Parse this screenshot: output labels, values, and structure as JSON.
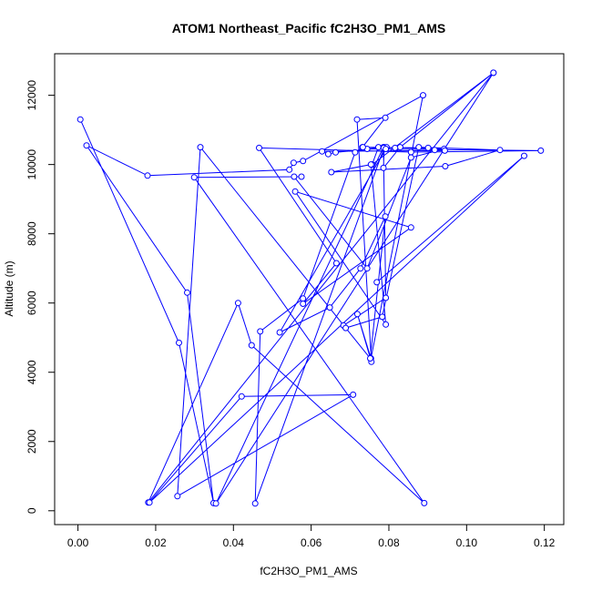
{
  "chart_data": {
    "type": "line",
    "title": "ATOM1 Northeast_Pacific fC2H3O_PM1_AMS",
    "xlabel": "fC2H3O_PM1_AMS",
    "ylabel": "Altitude (m)",
    "xlim": [
      -0.006,
      0.125
    ],
    "ylim": [
      -400,
      13200
    ],
    "x_ticks": [
      0.0,
      0.02,
      0.04,
      0.06,
      0.08,
      0.1,
      0.12
    ],
    "x_tick_labels": [
      "0.00",
      "0.02",
      "0.04",
      "0.06",
      "0.08",
      "0.10",
      "0.12"
    ],
    "y_ticks": [
      0,
      2000,
      4000,
      6000,
      8000,
      10000,
      12000
    ],
    "y_tick_labels": [
      "0",
      "2000",
      "4000",
      "6000",
      "8000",
      "10000",
      "12000"
    ],
    "series_color": "#0000ff",
    "series": [
      {
        "x": [
          0.0006,
          0.026,
          0.0349,
          0.0281,
          0.0022,
          0.0179,
          0.0544,
          0.0555,
          0.0579,
          0.0888,
          0.0754,
          0.0719,
          0.0755,
          0.0718,
          0.0791,
          0.0732,
          0.0713,
          0.0579,
          0.0469,
          0.0456,
          0.0788,
          0.0786,
          0.0829,
          0.1069,
          0.0181,
          0.0412,
          0.0447,
          0.0891,
          0.0299,
          0.0575,
          0.0556,
          0.0744,
          0.0857,
          0.0942,
          0.0773,
          0.0757,
          0.1069,
          0.0355,
          0.0786,
          0.0792,
          0.0683,
          0.0689,
          0.0783,
          0.0877,
          0.1086,
          0.0945,
          0.0652,
          0.0754,
          0.0792,
          0.0559,
          0.0857,
          0.0579,
          0.0665,
          0.0466,
          0.0857,
          0.1191,
          0.0744,
          0.0794,
          0.0816,
          0.0733,
          0.0901,
          0.0918,
          0.0944,
          0.0628,
          0.0644,
          0.0663,
          0.0787,
          0.0792,
          0.0519,
          0.0648,
          0.0727,
          0.0791,
          0.0752,
          0.0315,
          0.0256,
          0.0708,
          0.0421,
          0.0184,
          0.1148,
          0.0769
        ],
        "y": [
          11300,
          4850,
          220,
          6300,
          10550,
          9680,
          9850,
          10050,
          10100,
          12000,
          4400,
          5680,
          4300,
          11300,
          11350,
          10500,
          10350,
          6130,
          5180,
          210,
          10500,
          9900,
          10500,
          12650,
          240,
          6000,
          4780,
          220,
          9630,
          9650,
          9650,
          7000,
          10200,
          10450,
          10500,
          10000,
          12650,
          210,
          10500,
          6150,
          5350,
          5280,
          5600,
          10500,
          10420,
          9950,
          9780,
          10000,
          5380,
          9220,
          8180,
          5980,
          7150,
          10480,
          10360,
          10400,
          10450,
          10500,
          10480,
          10500,
          10480,
          10420,
          10400,
          10380,
          10300,
          10350,
          10480,
          10450,
          5150,
          5870,
          7000,
          8500,
          4400,
          10500,
          420,
          3350,
          3300,
          240,
          10250,
          6600
        ]
      }
    ]
  }
}
